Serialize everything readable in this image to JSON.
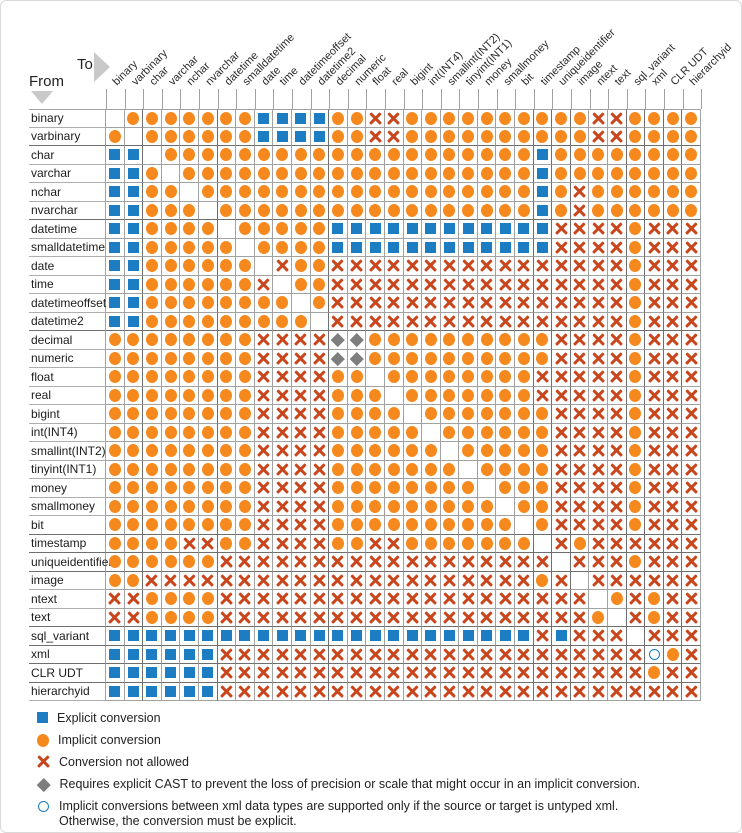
{
  "chart_data": {
    "type": "heatmap",
    "axis_from_label": "From",
    "axis_to_label": "To",
    "types": [
      "binary",
      "varbinary",
      "char",
      "varchar",
      "nchar",
      "nvarchar",
      "datetime",
      "smalldatetime",
      "date",
      "time",
      "datetimeoffset",
      "datetime2",
      "decimal",
      "numeric",
      "float",
      "real",
      "bigint",
      "int(INT4)",
      "smallint(INT2)",
      "tinyint(INT1)",
      "money",
      "smallmoney",
      "bit",
      "timestamp",
      "uniqueidentifier",
      "image",
      "ntext",
      "text",
      "sql_variant",
      "xml",
      "CLR UDT",
      "hierarchyid"
    ],
    "cell_codes": {
      "E": "explicit conversion (blue square)",
      "I": "implicit conversion (orange circle)",
      "X": "conversion not allowed (red x)",
      "D": "requires explicit CAST (gray diamond)",
      "O": "implicit only if source or target is untyped xml (open circle)",
      ".": "blank"
    },
    "matrix": [
      ".IIIIIIIEEEEIIXXIIIIIIIIIIXXIIII",
      "I.IIIIIIEEEEIIXXIIIIIIIIIIXXIIII",
      "EE.IIIIIIIIIIIIIIIIIIIIEIIIIIIII",
      "EEI.IIIIIIIIIIIIIIIIIIIEIIIIIIII",
      "EEII.IIIIIIIIIIIIIIIIIIEIXIIIIII",
      "EEIII.IIIIIIIIIIIIIIIIIEIXIIIIII",
      "EEIIII.IIIIIEEEEEEEEEEEEXXXXIXXX",
      "EEIIIII.IIIIEEEEEEEEEEEEXXXXIXXX",
      "EEIIIIII.XIIXXXXXXXXXXXXXXXXIXXX",
      "EEIIIIIIX.IIXXXXXXXXXXXXXXXXIXXX",
      "EEIIIIIIII.IXXXXXXXXXXXXXXXXIXXX",
      "EEIIIIIIIII.XXXXXXXXXXXXXXXXIXXX",
      "IIIIIIIIXXXXDDIIIIIIIIIIXXXXIXXX",
      "IIIIIIIIXXXXDDIIIIIIIIIIXXXXIXXX",
      "IIIIIIIIXXXXII.IIIIIIIIXXXXXIXXX",
      "IIIIIIIIXXXXIII.IIIIIIIXXXXXIXXX",
      "IIIIIIIIXXXXIIII.IIIIIIIXXXXIXXX",
      "IIIIIIIIXXXXIIIII.IIIIIIXXXXIXXX",
      "IIIIIIIIXXXXIIIIII.IIIIIXXXXIXXX",
      "IIIIIIIIXXXXIIIIIII.IIIIXXXXIXXX",
      "IIIIIIIIXXXXIIIIIIII.IIIXXXXIXXX",
      "IIIIIIIIXXXXIIIIIIIII.IIXXXXIXXX",
      "IIIIIIIIXXXXIIIIIIIIII.IXXXXIXXX",
      "IIIIXXIIXXXXIIXXIIIIIII.XIXXXXXX",
      "IIIIIIXXXXXXXXXXXXXXXXXX.XXXIXXX",
      "IIXXXXXXXXXXXXXXXXXXXXXIX.XXXXXX",
      "XXIIIIXXXXXXXXXXXXXXXXXXXX.IXIXX",
      "XXIIIIXXXXXXXXXXXXXXXXXXXXI.XIXX",
      "EEEEEEEEEEEEEEEEEEEEEEEXEXXX.XXX",
      "EEEEEEXXXXXXXXXXXXXXXXXXXXXXXOIX",
      "EEEEEEXXXXXXXXXXXXXXXXXXXXXXXIXX",
      "EEEEEEXXXXXXXXXXXXXXXXXXXXXXXXXX"
    ],
    "legend": [
      {
        "symbol": "explicit",
        "label": "Explicit conversion"
      },
      {
        "symbol": "implicit",
        "label": "Implicit conversion"
      },
      {
        "symbol": "not_allowed",
        "label": "Conversion not allowed"
      },
      {
        "symbol": "cast_required",
        "label": "Requires explicit CAST to prevent the loss of precision or scale that might occur in an implicit conversion."
      },
      {
        "symbol": "xml_conditional",
        "label": "Implicit conversions between xml data types are supported only if the source or target is untyped xml.",
        "label2": "Otherwise, the conversion must be explicit."
      }
    ],
    "colors": {
      "explicit": "#1d7dc2",
      "implicit": "#f6891e",
      "not_allowed": "#c9451c",
      "cast_required": "#7e7e7e",
      "xml_conditional": "#1d7dc2"
    },
    "group_boundaries_after": [
      2,
      6,
      12,
      23,
      24,
      25,
      28,
      29,
      30,
      31
    ],
    "legend_position": "bottom-left",
    "grid": "on"
  }
}
